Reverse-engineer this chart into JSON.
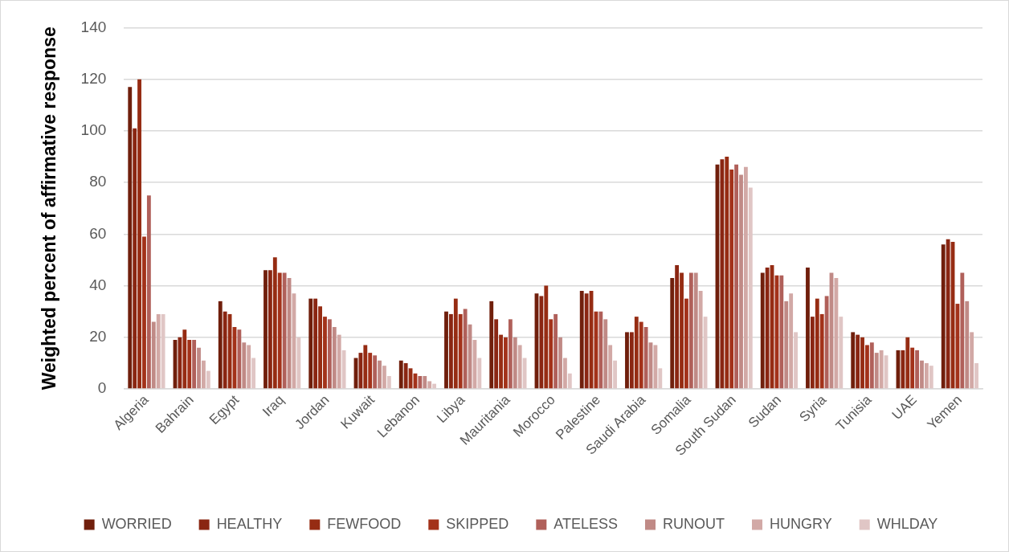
{
  "chart_data": {
    "type": "bar",
    "ylabel": "Weighted percent of affirmative response",
    "categories": [
      "Algeria",
      "Bahrain",
      "Egypt",
      "Iraq",
      "Jordan",
      "Kuwait",
      "Lebanon",
      "Libya",
      "Mauritania",
      "Morocco",
      "Palestine",
      "Saudi Arabia",
      "Somalia",
      "South Sudan",
      "Sudan",
      "Syria",
      "Tunisia",
      "UAE",
      "Yemen"
    ],
    "series": [
      {
        "name": "WORRIED",
        "color": "#701f0c",
        "values": [
          117,
          19,
          34,
          46,
          35,
          12,
          11,
          30,
          34,
          37,
          38,
          22,
          43,
          87,
          45,
          47,
          22,
          15,
          56
        ]
      },
      {
        "name": "HEALTHY",
        "color": "#8a2612",
        "values": [
          101,
          20,
          30,
          46,
          35,
          14,
          10,
          29,
          27,
          36,
          37,
          22,
          48,
          89,
          47,
          28,
          21,
          15,
          58
        ]
      },
      {
        "name": "FEWFOOD",
        "color": "#962c13",
        "values": [
          120,
          23,
          29,
          51,
          32,
          17,
          8,
          35,
          21,
          40,
          38,
          28,
          45,
          90,
          48,
          35,
          20,
          20,
          57
        ]
      },
      {
        "name": "SKIPPED",
        "color": "#a3321a",
        "values": [
          59,
          19,
          24,
          45,
          28,
          14,
          6,
          29,
          20,
          27,
          30,
          26,
          35,
          85,
          44,
          29,
          17,
          16,
          33
        ]
      },
      {
        "name": "ATELESS",
        "color": "#b0605a",
        "values": [
          75,
          19,
          23,
          45,
          27,
          13,
          5,
          31,
          27,
          29,
          30,
          24,
          45,
          87,
          44,
          36,
          18,
          15,
          45
        ]
      },
      {
        "name": "RUNOUT",
        "color": "#c08a86",
        "values": [
          26,
          16,
          18,
          43,
          24,
          11,
          5,
          25,
          20,
          20,
          27,
          18,
          45,
          83,
          34,
          45,
          14,
          11,
          34
        ]
      },
      {
        "name": "HUNGRY",
        "color": "#d2a9a6",
        "values": [
          29,
          11,
          17,
          37,
          21,
          9,
          3,
          19,
          17,
          12,
          17,
          17,
          38,
          86,
          37,
          43,
          15,
          10,
          22
        ]
      },
      {
        "name": "WHLDAY",
        "color": "#e0c6c5",
        "values": [
          29,
          7,
          12,
          20,
          15,
          5,
          2,
          12,
          12,
          6,
          11,
          8,
          28,
          78,
          22,
          28,
          13,
          9,
          10
        ]
      }
    ],
    "ylim": [
      0,
      140
    ],
    "yticks": [
      0,
      20,
      40,
      60,
      80,
      100,
      120,
      140
    ],
    "grid": "y",
    "legend": "bottom"
  }
}
